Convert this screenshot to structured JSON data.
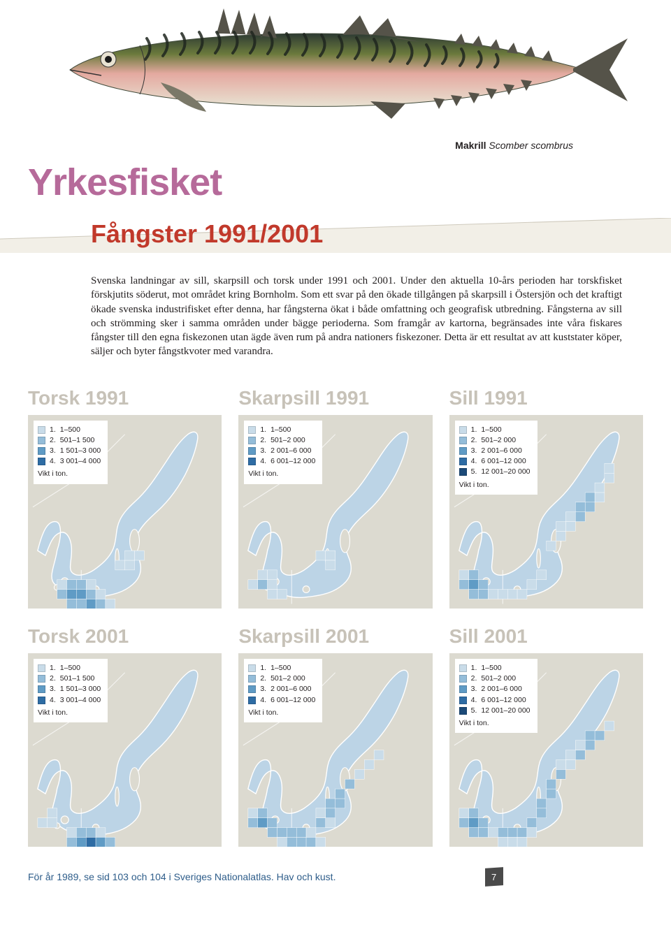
{
  "species_label": {
    "common": "Makrill",
    "latin": "Scomber scombrus"
  },
  "page_title": "Yrkesfisket",
  "subtitle": "Fångster 1991/2001",
  "body_text": "Svenska landningar av sill, skarpsill och torsk under 1991 och 2001. Under den aktuella 10-års perioden har torskfisket förskjutits söderut, mot området kring Bornholm. Som ett svar på den ökade tillgången på skarpsill i Östersjön och det kraftigt ökade svenska industrifisket efter denna, har fångsterna ökat i både omfattning och geografisk utbredning. Fångsterna av sill och strömming sker i samma områden under bägge perioderna. Som framgår av kartorna, begränsades inte våra fiskares fångster till den egna fiskezonen utan ägde även rum på andra nationers fiskezoner. Detta är ett resultat av att kuststater köper, säljer och byter fångstkvoter med varandra.",
  "footnote": "För år 1989, se sid 103 och 104 i Sveriges Nationalatlas. Hav och kust.",
  "page_number": "7",
  "palette_4": [
    "#c9dce9",
    "#94bdd9",
    "#5f9bc5",
    "#2e6ca4"
  ],
  "palette_5": [
    "#c9dce9",
    "#94bdd9",
    "#5f9bc5",
    "#2e6ca4",
    "#1c4a78"
  ],
  "map_bg_land": "#dcdad0",
  "map_bg_sea": "#bcd4e6",
  "map_coast": "#ffffff",
  "legend_unit": "Vikt i ton.",
  "maps": [
    {
      "title": "Torsk 1991",
      "legend": [
        {
          "n": "1.",
          "label": "1–500",
          "c": 0
        },
        {
          "n": "2.",
          "label": "501–1 500",
          "c": 1
        },
        {
          "n": "3.",
          "label": "1 501–3 000",
          "c": 2
        },
        {
          "n": "4.",
          "label": "3 001–4 000",
          "c": 3
        }
      ],
      "palette": "palette_4",
      "cells": [
        [
          3,
          17,
          1
        ],
        [
          4,
          17,
          2
        ],
        [
          5,
          17,
          2
        ],
        [
          6,
          17,
          1
        ],
        [
          3,
          18,
          2
        ],
        [
          4,
          18,
          3
        ],
        [
          5,
          18,
          3
        ],
        [
          6,
          18,
          2
        ],
        [
          7,
          18,
          1
        ],
        [
          4,
          19,
          2
        ],
        [
          5,
          19,
          2
        ],
        [
          6,
          19,
          3
        ],
        [
          7,
          19,
          2
        ],
        [
          8,
          19,
          1
        ],
        [
          6,
          20,
          2
        ],
        [
          7,
          20,
          1
        ],
        [
          9,
          15,
          1
        ],
        [
          10,
          15,
          1
        ],
        [
          10,
          14,
          1
        ],
        [
          11,
          14,
          1
        ]
      ]
    },
    {
      "title": "Skarpsill 1991",
      "legend": [
        {
          "n": "1.",
          "label": "1–500",
          "c": 0
        },
        {
          "n": "2.",
          "label": "501–2 000",
          "c": 1
        },
        {
          "n": "3.",
          "label": "2 001–6 000",
          "c": 2
        },
        {
          "n": "4.",
          "label": "6 001–12 000",
          "c": 3
        }
      ],
      "palette": "palette_4",
      "cells": [
        [
          2,
          16,
          1
        ],
        [
          3,
          16,
          1
        ],
        [
          1,
          17,
          1
        ],
        [
          2,
          17,
          2
        ],
        [
          3,
          17,
          1
        ],
        [
          3,
          18,
          1
        ],
        [
          4,
          18,
          1
        ],
        [
          8,
          14,
          1
        ],
        [
          9,
          14,
          1
        ],
        [
          9,
          15,
          1
        ]
      ]
    },
    {
      "title": "Sill 1991",
      "legend": [
        {
          "n": "1.",
          "label": "1–500",
          "c": 0
        },
        {
          "n": "2.",
          "label": "501–2 000",
          "c": 1
        },
        {
          "n": "3.",
          "label": "2 001–6 000",
          "c": 2
        },
        {
          "n": "4.",
          "label": "6 001–12 000",
          "c": 3
        },
        {
          "n": "5.",
          "label": "12 001–20 000",
          "c": 4
        }
      ],
      "palette": "palette_5",
      "cells": [
        [
          1,
          16,
          1
        ],
        [
          2,
          16,
          2
        ],
        [
          1,
          17,
          2
        ],
        [
          2,
          17,
          3
        ],
        [
          3,
          17,
          2
        ],
        [
          2,
          18,
          2
        ],
        [
          3,
          18,
          2
        ],
        [
          4,
          18,
          1
        ],
        [
          5,
          18,
          1
        ],
        [
          6,
          18,
          1
        ],
        [
          7,
          18,
          1
        ],
        [
          8,
          17,
          1
        ],
        [
          9,
          16,
          1
        ],
        [
          10,
          13,
          1
        ],
        [
          11,
          12,
          1
        ],
        [
          12,
          11,
          1
        ],
        [
          13,
          10,
          2
        ],
        [
          14,
          9,
          2
        ],
        [
          15,
          8,
          1
        ],
        [
          14,
          8,
          2
        ],
        [
          15,
          7,
          1
        ],
        [
          16,
          6,
          1
        ],
        [
          16,
          5,
          1
        ],
        [
          13,
          9,
          2
        ],
        [
          12,
          10,
          1
        ],
        [
          11,
          11,
          1
        ]
      ]
    },
    {
      "title": "Torsk 2001",
      "legend": [
        {
          "n": "1.",
          "label": "1–500",
          "c": 0
        },
        {
          "n": "2.",
          "label": "501–1 500",
          "c": 1
        },
        {
          "n": "3.",
          "label": "1 501–3 000",
          "c": 2
        },
        {
          "n": "4.",
          "label": "3 001–4 000",
          "c": 3
        }
      ],
      "palette": "palette_4",
      "cells": [
        [
          4,
          18,
          1
        ],
        [
          5,
          18,
          2
        ],
        [
          6,
          18,
          2
        ],
        [
          7,
          18,
          1
        ],
        [
          4,
          19,
          2
        ],
        [
          5,
          19,
          3
        ],
        [
          6,
          19,
          4
        ],
        [
          7,
          19,
          3
        ],
        [
          8,
          19,
          2
        ],
        [
          5,
          20,
          2
        ],
        [
          6,
          20,
          3
        ],
        [
          7,
          20,
          2
        ],
        [
          1,
          17,
          1
        ],
        [
          2,
          17,
          1
        ],
        [
          2,
          16,
          1
        ]
      ]
    },
    {
      "title": "Skarpsill 2001",
      "legend": [
        {
          "n": "1.",
          "label": "1–500",
          "c": 0
        },
        {
          "n": "2.",
          "label": "501–2 000",
          "c": 1
        },
        {
          "n": "3.",
          "label": "2 001–6 000",
          "c": 2
        },
        {
          "n": "4.",
          "label": "6 001–12 000",
          "c": 3
        }
      ],
      "palette": "palette_4",
      "cells": [
        [
          1,
          16,
          1
        ],
        [
          2,
          16,
          2
        ],
        [
          1,
          17,
          2
        ],
        [
          2,
          17,
          3
        ],
        [
          3,
          17,
          2
        ],
        [
          3,
          18,
          2
        ],
        [
          4,
          18,
          2
        ],
        [
          5,
          18,
          2
        ],
        [
          6,
          18,
          2
        ],
        [
          7,
          18,
          1
        ],
        [
          4,
          19,
          1
        ],
        [
          5,
          19,
          2
        ],
        [
          6,
          19,
          2
        ],
        [
          7,
          19,
          2
        ],
        [
          8,
          19,
          1
        ],
        [
          8,
          17,
          2
        ],
        [
          9,
          16,
          2
        ],
        [
          10,
          15,
          2
        ],
        [
          10,
          14,
          2
        ],
        [
          11,
          13,
          2
        ],
        [
          12,
          12,
          1
        ],
        [
          9,
          15,
          2
        ],
        [
          8,
          16,
          1
        ],
        [
          9,
          17,
          1
        ],
        [
          13,
          11,
          1
        ],
        [
          14,
          10,
          1
        ]
      ]
    },
    {
      "title": "Sill 2001",
      "legend": [
        {
          "n": "1.",
          "label": "1–500",
          "c": 0
        },
        {
          "n": "2.",
          "label": "501–2 000",
          "c": 1
        },
        {
          "n": "3.",
          "label": "2 001–6 000",
          "c": 2
        },
        {
          "n": "4.",
          "label": "6 001–12 000",
          "c": 3
        },
        {
          "n": "5.",
          "label": "12 001–20 000",
          "c": 4
        }
      ],
      "palette": "palette_5",
      "cells": [
        [
          1,
          16,
          1
        ],
        [
          2,
          16,
          2
        ],
        [
          1,
          17,
          2
        ],
        [
          2,
          17,
          3
        ],
        [
          3,
          17,
          2
        ],
        [
          2,
          18,
          2
        ],
        [
          3,
          18,
          2
        ],
        [
          4,
          18,
          1
        ],
        [
          5,
          18,
          2
        ],
        [
          6,
          18,
          2
        ],
        [
          7,
          18,
          2
        ],
        [
          8,
          17,
          2
        ],
        [
          9,
          16,
          2
        ],
        [
          9,
          15,
          2
        ],
        [
          10,
          14,
          2
        ],
        [
          10,
          13,
          2
        ],
        [
          11,
          12,
          2
        ],
        [
          12,
          11,
          1
        ],
        [
          13,
          10,
          2
        ],
        [
          14,
          9,
          2
        ],
        [
          15,
          8,
          2
        ],
        [
          14,
          8,
          2
        ],
        [
          16,
          7,
          1
        ],
        [
          13,
          9,
          1
        ],
        [
          12,
          10,
          1
        ],
        [
          11,
          11,
          1
        ],
        [
          5,
          19,
          1
        ],
        [
          6,
          19,
          1
        ],
        [
          7,
          19,
          1
        ],
        [
          8,
          18,
          1
        ]
      ]
    }
  ],
  "fish_colors": {
    "back_dark": "#2d3a33",
    "back_olive": "#6b7a3c",
    "belly_pink": "#e4a9a0",
    "belly_light": "#e8e2d2",
    "fin": "#555349"
  }
}
